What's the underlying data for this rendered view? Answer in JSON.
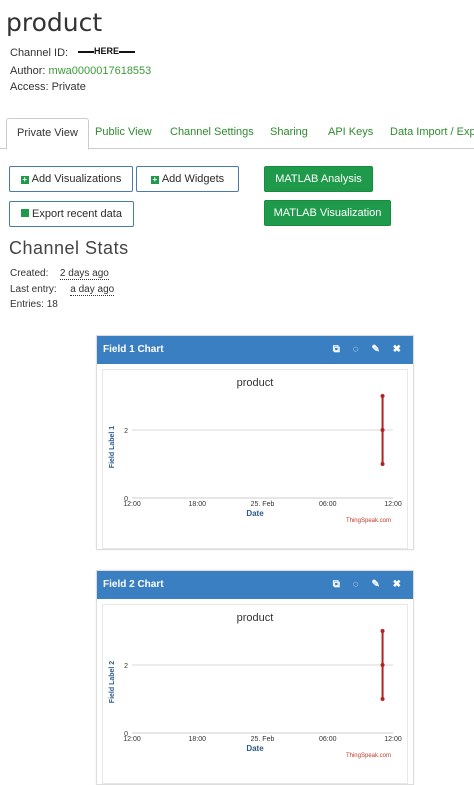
{
  "page": {
    "title": "product",
    "channel_id_label": "Channel ID:",
    "channel_id_value": "HERE",
    "author_label": "Author:",
    "author_value": "mwa0000017618553",
    "access_label": "Access:",
    "access_value": "Private"
  },
  "tabs": [
    "Private View",
    "Public View",
    "Channel Settings",
    "Sharing",
    "API Keys",
    "Data Import / Expo"
  ],
  "buttons": {
    "add_visualizations": "Add Visualizations",
    "add_widgets": "Add Widgets",
    "export_recent": "Export recent data",
    "matlab_analysis": "MATLAB Analysis",
    "matlab_visualization": "MATLAB Visualization"
  },
  "stats": {
    "title": "Channel Stats",
    "created_label": "Created:",
    "created_value": "2 days ago",
    "last_entry_label": "Last entry:",
    "last_entry_value": "a day ago",
    "entries_label": "Entries:",
    "entries_value": "18"
  },
  "colors": {
    "header": "#3a7fc1",
    "accent_green": "#1f9a4b",
    "series": "#b22222"
  },
  "charts": [
    {
      "header": "Field 1 Chart",
      "watermark": "ThingSpeak.com",
      "chart_data": {
        "type": "line",
        "title": "product",
        "xlabel": "Date",
        "ylabel": "Field Label 1",
        "x_ticks": [
          "12:00",
          "18:00",
          "25. Feb",
          "06:00",
          "12:00"
        ],
        "y_ticks": [
          "0",
          "2"
        ],
        "ylim": [
          0,
          3
        ],
        "series": [
          {
            "x": [
              0.96,
              0.96,
              0.96
            ],
            "values": [
              3,
              2,
              1
            ]
          }
        ]
      }
    },
    {
      "header": "Field 2 Chart",
      "watermark": "ThingSpeak.com",
      "chart_data": {
        "type": "line",
        "title": "product",
        "xlabel": "Date",
        "ylabel": "Field Label 2",
        "x_ticks": [
          "12:00",
          "18:00",
          "25. Feb",
          "06:00",
          "12:00"
        ],
        "y_ticks": [
          "0",
          "2"
        ],
        "ylim": [
          0,
          3
        ],
        "series": [
          {
            "x": [
              0.96,
              0.96,
              0.96
            ],
            "values": [
              3,
              2,
              1
            ]
          }
        ]
      }
    }
  ]
}
